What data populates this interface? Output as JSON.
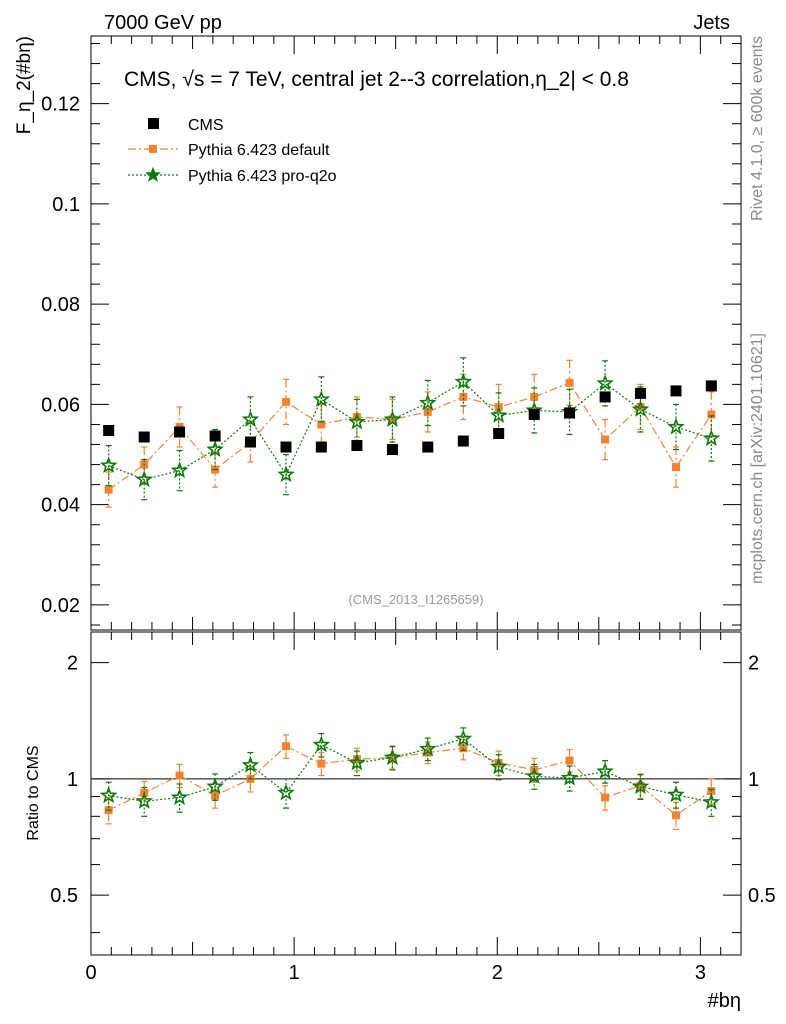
{
  "header": {
    "left": "7000 GeV pp",
    "right": "Jets"
  },
  "side_labels": {
    "top": "Rivet 4.1.0, ≥ 600k events",
    "bottom": "mcplots.cern.ch [arXiv:2401.10621]"
  },
  "colors": {
    "cms": "#000000",
    "default": "#f58232",
    "proq2o": "#0a7a0a",
    "watermark": "#999999"
  },
  "chart_data": [
    {
      "type": "scatter",
      "title": "CMS, √s = 7 TeV, central jet 2--3 correlation,η_2| < 0.8",
      "ylabel": "F_η_2(#bη)",
      "xlabel": "",
      "xlim": [
        0,
        3.2
      ],
      "ylim": [
        0.015,
        0.1335
      ],
      "yticks": [
        0.02,
        0.04,
        0.06,
        0.08,
        0.1,
        0.12
      ],
      "ytick_labels": [
        "0.02",
        "0.04",
        "0.06",
        "0.08",
        "0.1",
        "0.12"
      ],
      "analysis_label": "(CMS_2013_I1265659)",
      "x": [
        0.087,
        0.262,
        0.436,
        0.611,
        0.785,
        0.96,
        1.134,
        1.309,
        1.484,
        1.658,
        1.833,
        2.007,
        2.182,
        2.356,
        2.531,
        2.705,
        2.88,
        3.054
      ],
      "series": [
        {
          "name": "CMS",
          "marker": "square",
          "values": [
            0.0548,
            0.0535,
            0.0545,
            0.0537,
            0.0525,
            0.0515,
            0.0515,
            0.0518,
            0.051,
            0.0515,
            0.0527,
            0.0542,
            0.058,
            0.0583,
            0.0615,
            0.0622,
            0.0627,
            0.0637
          ],
          "errors": [
            0,
            0,
            0,
            0,
            0,
            0,
            0,
            0,
            0,
            0,
            0,
            0,
            0,
            0,
            0,
            0,
            0,
            0
          ]
        },
        {
          "name": "Pythia 6.423 default",
          "marker": "square-small",
          "values": [
            0.043,
            0.048,
            0.0555,
            0.047,
            0.0525,
            0.0605,
            0.056,
            0.0575,
            0.057,
            0.0585,
            0.0615,
            0.0595,
            0.0615,
            0.0643,
            0.053,
            0.0595,
            0.0475,
            0.058
          ],
          "errors": [
            0.0035,
            0.0035,
            0.004,
            0.0035,
            0.004,
            0.0045,
            0.004,
            0.004,
            0.004,
            0.004,
            0.0045,
            0.0045,
            0.0045,
            0.0045,
            0.004,
            0.0045,
            0.004,
            0.0045
          ]
        },
        {
          "name": "Pythia 6.423 pro-q2o",
          "marker": "star",
          "values": [
            0.0478,
            0.045,
            0.0468,
            0.051,
            0.057,
            0.046,
            0.061,
            0.0565,
            0.057,
            0.0603,
            0.0645,
            0.0578,
            0.0588,
            0.0585,
            0.0642,
            0.059,
            0.0555,
            0.0532
          ],
          "errors": [
            0.004,
            0.004,
            0.004,
            0.004,
            0.0045,
            0.004,
            0.0045,
            0.0045,
            0.0045,
            0.0045,
            0.0048,
            0.0045,
            0.0045,
            0.0045,
            0.0045,
            0.0045,
            0.0045,
            0.0045
          ]
        }
      ]
    },
    {
      "type": "scatter",
      "title": "",
      "ylabel": "Ratio to CMS",
      "xlabel": "#bη",
      "xlim": [
        0,
        3.2
      ],
      "ylim": [
        0.35,
        2.4
      ],
      "yscale": "log",
      "yticks": [
        0.5,
        1,
        2
      ],
      "ytick_labels": [
        "0.5",
        "1",
        "2"
      ],
      "xticks": [
        0,
        1,
        2,
        3
      ],
      "xtick_labels": [
        "0",
        "1",
        "2",
        "3"
      ],
      "reference_line": 1,
      "x": [
        0.087,
        0.262,
        0.436,
        0.611,
        0.785,
        0.96,
        1.134,
        1.309,
        1.484,
        1.658,
        1.833,
        2.007,
        2.182,
        2.356,
        2.531,
        2.705,
        2.88,
        3.054
      ],
      "series": [
        {
          "name": "Pythia 6.423 default",
          "marker": "square-small",
          "values": [
            0.83,
            0.92,
            1.02,
            0.905,
            1.0,
            1.215,
            1.095,
            1.125,
            1.135,
            1.17,
            1.2,
            1.1,
            1.055,
            1.115,
            0.895,
            0.96,
            0.805,
            0.93
          ],
          "errors": [
            0.065,
            0.065,
            0.07,
            0.065,
            0.075,
            0.085,
            0.075,
            0.075,
            0.075,
            0.075,
            0.08,
            0.08,
            0.075,
            0.075,
            0.065,
            0.07,
            0.065,
            0.07
          ]
        },
        {
          "name": "Pythia 6.423 pro-q2o",
          "marker": "star",
          "values": [
            0.905,
            0.875,
            0.895,
            0.955,
            1.085,
            0.92,
            1.225,
            1.1,
            1.135,
            1.195,
            1.27,
            1.075,
            1.015,
            1.005,
            1.045,
            0.955,
            0.91,
            0.87
          ],
          "errors": [
            0.075,
            0.075,
            0.075,
            0.075,
            0.085,
            0.08,
            0.085,
            0.08,
            0.08,
            0.08,
            0.085,
            0.08,
            0.075,
            0.075,
            0.07,
            0.07,
            0.07,
            0.07
          ]
        }
      ]
    }
  ]
}
